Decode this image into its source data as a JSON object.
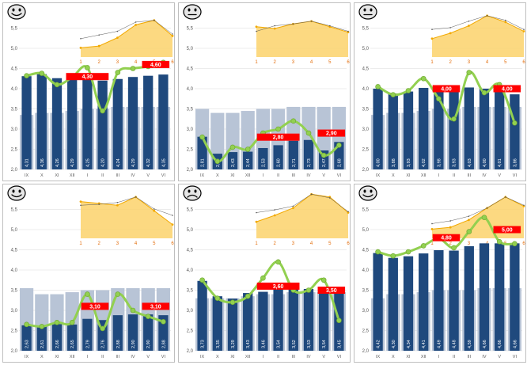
{
  "colors": {
    "bar": "#1f497d",
    "ghost_bar": "#b8c4d6",
    "line": "#92d050",
    "marker": "#92d050",
    "target_box": "#ff0000",
    "inset_fill": "#fcd26b",
    "inset_line": "#f2a900",
    "inset_dark_line": "#595959",
    "grid": "#d9d9d9"
  },
  "chart_data": [
    {
      "type": "bar",
      "mood": "smile",
      "categories": [
        "IX",
        "X",
        "XI",
        "XII",
        "I",
        "II",
        "III",
        "IV",
        "V",
        "VI"
      ],
      "values": [
        4.31,
        4.36,
        4.26,
        4.29,
        4.25,
        4.2,
        4.24,
        4.29,
        4.32,
        4.35
      ],
      "value_labels": [
        "4,31",
        "4,36",
        "4,26",
        "4,29",
        "4,25",
        "4,20",
        "4,24",
        "4,29",
        "4,32",
        "4,35"
      ],
      "ghost_values": [
        3.35,
        3.4,
        3.4,
        3.45,
        3.5,
        3.5,
        3.55,
        3.55,
        3.55,
        3.55
      ],
      "line_values": [
        4.32,
        4.38,
        4.1,
        4.28,
        4.52,
        3.45,
        4.4,
        4.5,
        4.55,
        4.65
      ],
      "targets": [
        {
          "label": "4,30",
          "value": 4.3,
          "from": 3,
          "to": 5
        },
        {
          "label": "4,60",
          "value": 4.6,
          "from": 8,
          "to": 9
        }
      ],
      "ylim": [
        2.0,
        6.0
      ],
      "yticks": [
        "2,0",
        "2,5",
        "3,0",
        "3,5",
        "4,0",
        "4,5",
        "5,0",
        "5,5"
      ],
      "inset": {
        "x": [
          "1",
          "2",
          "3",
          "4",
          "5",
          "6"
        ],
        "values": [
          1.0,
          1.2,
          2.1,
          3.5,
          4.0,
          2.3
        ],
        "dark_values": [
          2.0,
          2.4,
          2.8,
          3.8,
          4.0,
          2.5
        ],
        "ylim": [
          0,
          5
        ]
      }
    },
    {
      "type": "bar",
      "mood": "neutral",
      "categories": [
        "IX",
        "X",
        "XI",
        "XII",
        "I",
        "II",
        "III",
        "IV",
        "V",
        "VI"
      ],
      "values": [
        2.81,
        2.39,
        2.43,
        2.44,
        2.53,
        2.6,
        2.71,
        2.73,
        2.47,
        2.68
      ],
      "value_labels": [
        "2,81",
        "2,39",
        "2,43",
        "2,44",
        "2,53",
        "2,60",
        "2,71",
        "2,73",
        "2,47",
        "2,68"
      ],
      "ghost_values": [
        3.5,
        3.4,
        3.4,
        3.45,
        3.5,
        3.5,
        3.55,
        3.55,
        3.55,
        3.55
      ],
      "line_values": [
        2.8,
        2.2,
        2.55,
        2.5,
        2.9,
        3.0,
        3.2,
        2.9,
        2.35,
        2.6
      ],
      "targets": [
        {
          "label": "2,80",
          "value": 2.8,
          "from": 4,
          "to": 6
        },
        {
          "label": "2,90",
          "value": 2.9,
          "from": 8,
          "to": 9
        }
      ],
      "ylim": [
        2.0,
        6.0
      ],
      "yticks": [
        "2,0",
        "2,5",
        "3,0",
        "3,5",
        "4,0",
        "4,5",
        "5,0",
        "5,5"
      ],
      "inset": {
        "x": [
          "1",
          "2",
          "3",
          "4",
          "5",
          "6"
        ],
        "values": [
          3.3,
          3.1,
          3.6,
          3.9,
          3.3,
          2.7
        ],
        "dark_values": [
          2.8,
          3.4,
          3.6,
          3.9,
          3.4,
          2.8
        ],
        "ylim": [
          0,
          5
        ]
      }
    },
    {
      "type": "bar",
      "mood": "neutral",
      "categories": [
        "IX",
        "X",
        "XI",
        "XII",
        "I",
        "II",
        "III",
        "IV",
        "V",
        "VI"
      ],
      "values": [
        4.0,
        3.88,
        3.93,
        4.02,
        3.98,
        3.93,
        4.03,
        4.0,
        4.01,
        3.86
      ],
      "value_labels": [
        "4,00",
        "3,88",
        "3,93",
        "4,02",
        "3,98",
        "3,93",
        "4,03",
        "4,00",
        "4,01",
        "3,86"
      ],
      "ghost_values": [
        3.35,
        3.4,
        3.4,
        3.45,
        3.5,
        3.5,
        3.55,
        3.55,
        3.55,
        3.55
      ],
      "line_values": [
        4.05,
        3.85,
        3.95,
        4.25,
        3.75,
        3.25,
        4.4,
        3.9,
        4.1,
        3.15
      ],
      "targets": [
        {
          "label": "4,00",
          "value": 4.0,
          "from": 4,
          "to": 5
        },
        {
          "label": "4,00",
          "value": 4.0,
          "from": 8,
          "to": 9
        }
      ],
      "ylim": [
        2.0,
        6.0
      ],
      "yticks": [
        "2,0",
        "2,5",
        "3,0",
        "3,5",
        "4,0",
        "4,5",
        "5,0",
        "5,5"
      ],
      "inset": {
        "x": [
          "1",
          "2",
          "3",
          "4",
          "5",
          "6"
        ],
        "values": [
          2.0,
          2.6,
          3.4,
          4.5,
          3.8,
          2.8
        ],
        "dark_values": [
          3.0,
          3.2,
          3.9,
          4.5,
          4.0,
          3.0
        ],
        "ylim": [
          0,
          5
        ]
      }
    },
    {
      "type": "bar",
      "mood": "smile",
      "categories": [
        "IX",
        "X",
        "XI",
        "XII",
        "I",
        "II",
        "III",
        "IV",
        "V",
        "VI"
      ],
      "values": [
        2.63,
        2.61,
        2.66,
        2.65,
        2.79,
        2.76,
        2.88,
        2.9,
        2.9,
        2.88
      ],
      "value_labels": [
        "2,63",
        "2,61",
        "2,66",
        "2,65",
        "2,79",
        "2,76",
        "2,88",
        "2,90",
        "2,90",
        "2,88"
      ],
      "ghost_values": [
        3.55,
        3.4,
        3.4,
        3.45,
        3.5,
        3.5,
        3.55,
        3.55,
        3.55,
        3.55
      ],
      "line_values": [
        2.65,
        2.6,
        2.7,
        2.7,
        3.4,
        2.55,
        3.4,
        3.0,
        2.85,
        2.72
      ],
      "targets": [
        {
          "label": "3,10",
          "value": 3.1,
          "from": 4,
          "to": 5
        },
        {
          "label": "3,10",
          "value": 3.1,
          "from": 8,
          "to": 9
        }
      ],
      "ylim": [
        2.0,
        6.0
      ],
      "yticks": [
        "2,0",
        "2,5",
        "3,0",
        "3,5",
        "4,0",
        "4,5",
        "5,0",
        "5,5"
      ],
      "inset": {
        "x": [
          "1",
          "2",
          "3",
          "4",
          "5",
          "6"
        ],
        "values": [
          4.0,
          3.8,
          3.6,
          4.5,
          3.0,
          1.5
        ],
        "dark_values": [
          3.6,
          3.7,
          3.9,
          4.5,
          3.2,
          2.5
        ],
        "ylim": [
          0,
          5
        ]
      }
    },
    {
      "type": "bar",
      "mood": "sad",
      "categories": [
        "IX",
        "X",
        "XI",
        "XII",
        "I",
        "II",
        "III",
        "IV",
        "V",
        "VI"
      ],
      "values": [
        3.73,
        3.35,
        3.29,
        3.43,
        3.46,
        3.54,
        3.52,
        3.53,
        3.54,
        3.45
      ],
      "value_labels": [
        "3,73",
        "3,35",
        "3,29",
        "3,43",
        "3,46",
        "3,54",
        "3,52",
        "3,53",
        "3,54",
        "3,45"
      ],
      "ghost_values": [
        3.3,
        3.3,
        3.3,
        3.35,
        3.4,
        3.4,
        3.45,
        3.45,
        3.45,
        3.45
      ],
      "line_values": [
        3.75,
        3.3,
        3.2,
        3.35,
        3.8,
        4.2,
        3.5,
        3.5,
        3.75,
        2.75
      ],
      "targets": [
        {
          "label": "3,60",
          "value": 3.6,
          "from": 4,
          "to": 6
        },
        {
          "label": "3,50",
          "value": 3.5,
          "from": 8,
          "to": 9
        }
      ],
      "ylim": [
        2.0,
        6.0
      ],
      "yticks": [
        "2,0",
        "2,5",
        "3,0",
        "3,5",
        "4,0",
        "4,5",
        "5,0",
        "5,5"
      ],
      "inset": {
        "x": [
          "1",
          "2",
          "3",
          "4",
          "5",
          "6"
        ],
        "values": [
          1.8,
          2.5,
          3.3,
          4.8,
          4.5,
          2.8
        ],
        "dark_values": [
          2.8,
          3.1,
          3.5,
          4.8,
          4.4,
          2.9
        ],
        "ylim": [
          0,
          5
        ]
      }
    },
    {
      "type": "bar",
      "mood": "smile",
      "categories": [
        "IX",
        "X",
        "XI",
        "XII",
        "I",
        "II",
        "III",
        "IV",
        "V",
        "VI"
      ],
      "values": [
        4.42,
        4.3,
        4.34,
        4.41,
        4.49,
        4.48,
        4.59,
        4.66,
        4.66,
        4.66
      ],
      "value_labels": [
        "4,42",
        "4,30",
        "4,34",
        "4,41",
        "4,49",
        "4,48",
        "4,59",
        "4,66",
        "4,66",
        "4,66"
      ],
      "ghost_values": [
        3.3,
        3.4,
        3.4,
        3.45,
        3.5,
        3.5,
        3.5,
        3.55,
        3.55,
        3.55
      ],
      "line_values": [
        4.45,
        4.35,
        4.45,
        4.6,
        4.78,
        4.55,
        4.95,
        5.3,
        4.7,
        4.65
      ],
      "targets": [
        {
          "label": "4,80",
          "value": 4.8,
          "from": 4,
          "to": 5
        },
        {
          "label": "5,00",
          "value": 5.0,
          "from": 8,
          "to": 9
        }
      ],
      "ylim": [
        2.0,
        6.0
      ],
      "yticks": [
        "2,0",
        "2,5",
        "3,0",
        "3,5",
        "4,0",
        "4,5",
        "5,0",
        "5,5"
      ],
      "inset": {
        "x": [
          "1",
          "2",
          "3",
          "4",
          "5",
          "6"
        ],
        "values": [
          1.0,
          1.2,
          2.0,
          3.3,
          4.5,
          3.5
        ],
        "dark_values": [
          1.6,
          1.9,
          2.4,
          3.3,
          4.5,
          3.6
        ],
        "ylim": [
          0,
          5
        ]
      }
    }
  ]
}
